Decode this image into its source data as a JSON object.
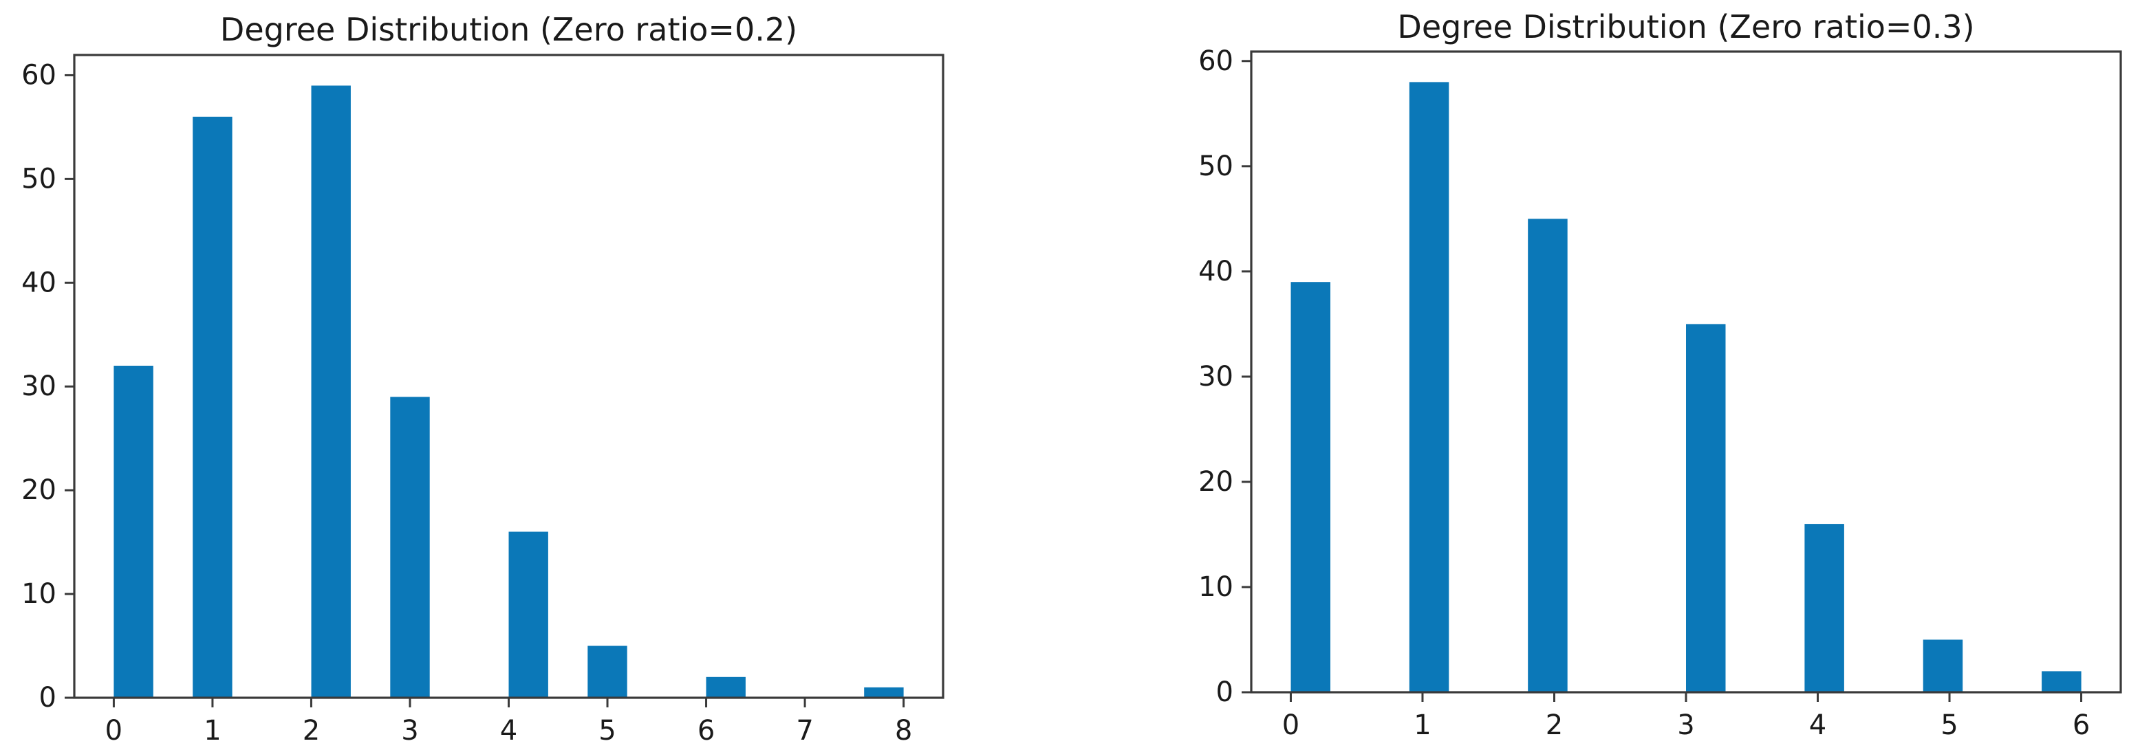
{
  "figure": {
    "background_color": "#ffffff"
  },
  "style": {
    "bar_color": "#0b78b8",
    "spine_color": "#3a3a3a",
    "tick_color": "#3a3a3a",
    "text_color": "#1a1a1a"
  },
  "chart_data": [
    {
      "type": "bar",
      "title": "Degree Distribution (Zero ratio=0.2)",
      "categories": [
        0,
        1,
        2,
        3,
        4,
        5,
        6,
        7,
        8
      ],
      "values": [
        32,
        56,
        59,
        29,
        16,
        5,
        2,
        0,
        1
      ],
      "xlabel": "",
      "ylabel": "",
      "xticks": [
        0,
        1,
        2,
        3,
        4,
        5,
        6,
        7,
        8
      ],
      "yticks": [
        0,
        10,
        20,
        30,
        40,
        50,
        60
      ],
      "xlim": [
        -0.4,
        8.4
      ],
      "ylim": [
        0,
        61.95
      ],
      "data_range": [
        0,
        8
      ],
      "bin_width": 0.4,
      "grid": false,
      "legend": "none"
    },
    {
      "type": "bar",
      "title": "Degree Distribution (Zero ratio=0.3)",
      "categories": [
        0,
        1,
        2,
        3,
        4,
        5,
        6
      ],
      "values": [
        39,
        58,
        45,
        35,
        16,
        5,
        2
      ],
      "xlabel": "",
      "ylabel": "",
      "xticks": [
        0,
        1,
        2,
        3,
        4,
        5,
        6
      ],
      "yticks": [
        0,
        10,
        20,
        30,
        40,
        50,
        60
      ],
      "xlim": [
        -0.3,
        6.3
      ],
      "ylim": [
        0,
        60.9
      ],
      "data_range": [
        0,
        6
      ],
      "bin_width": 0.3,
      "grid": false,
      "legend": "none"
    }
  ]
}
